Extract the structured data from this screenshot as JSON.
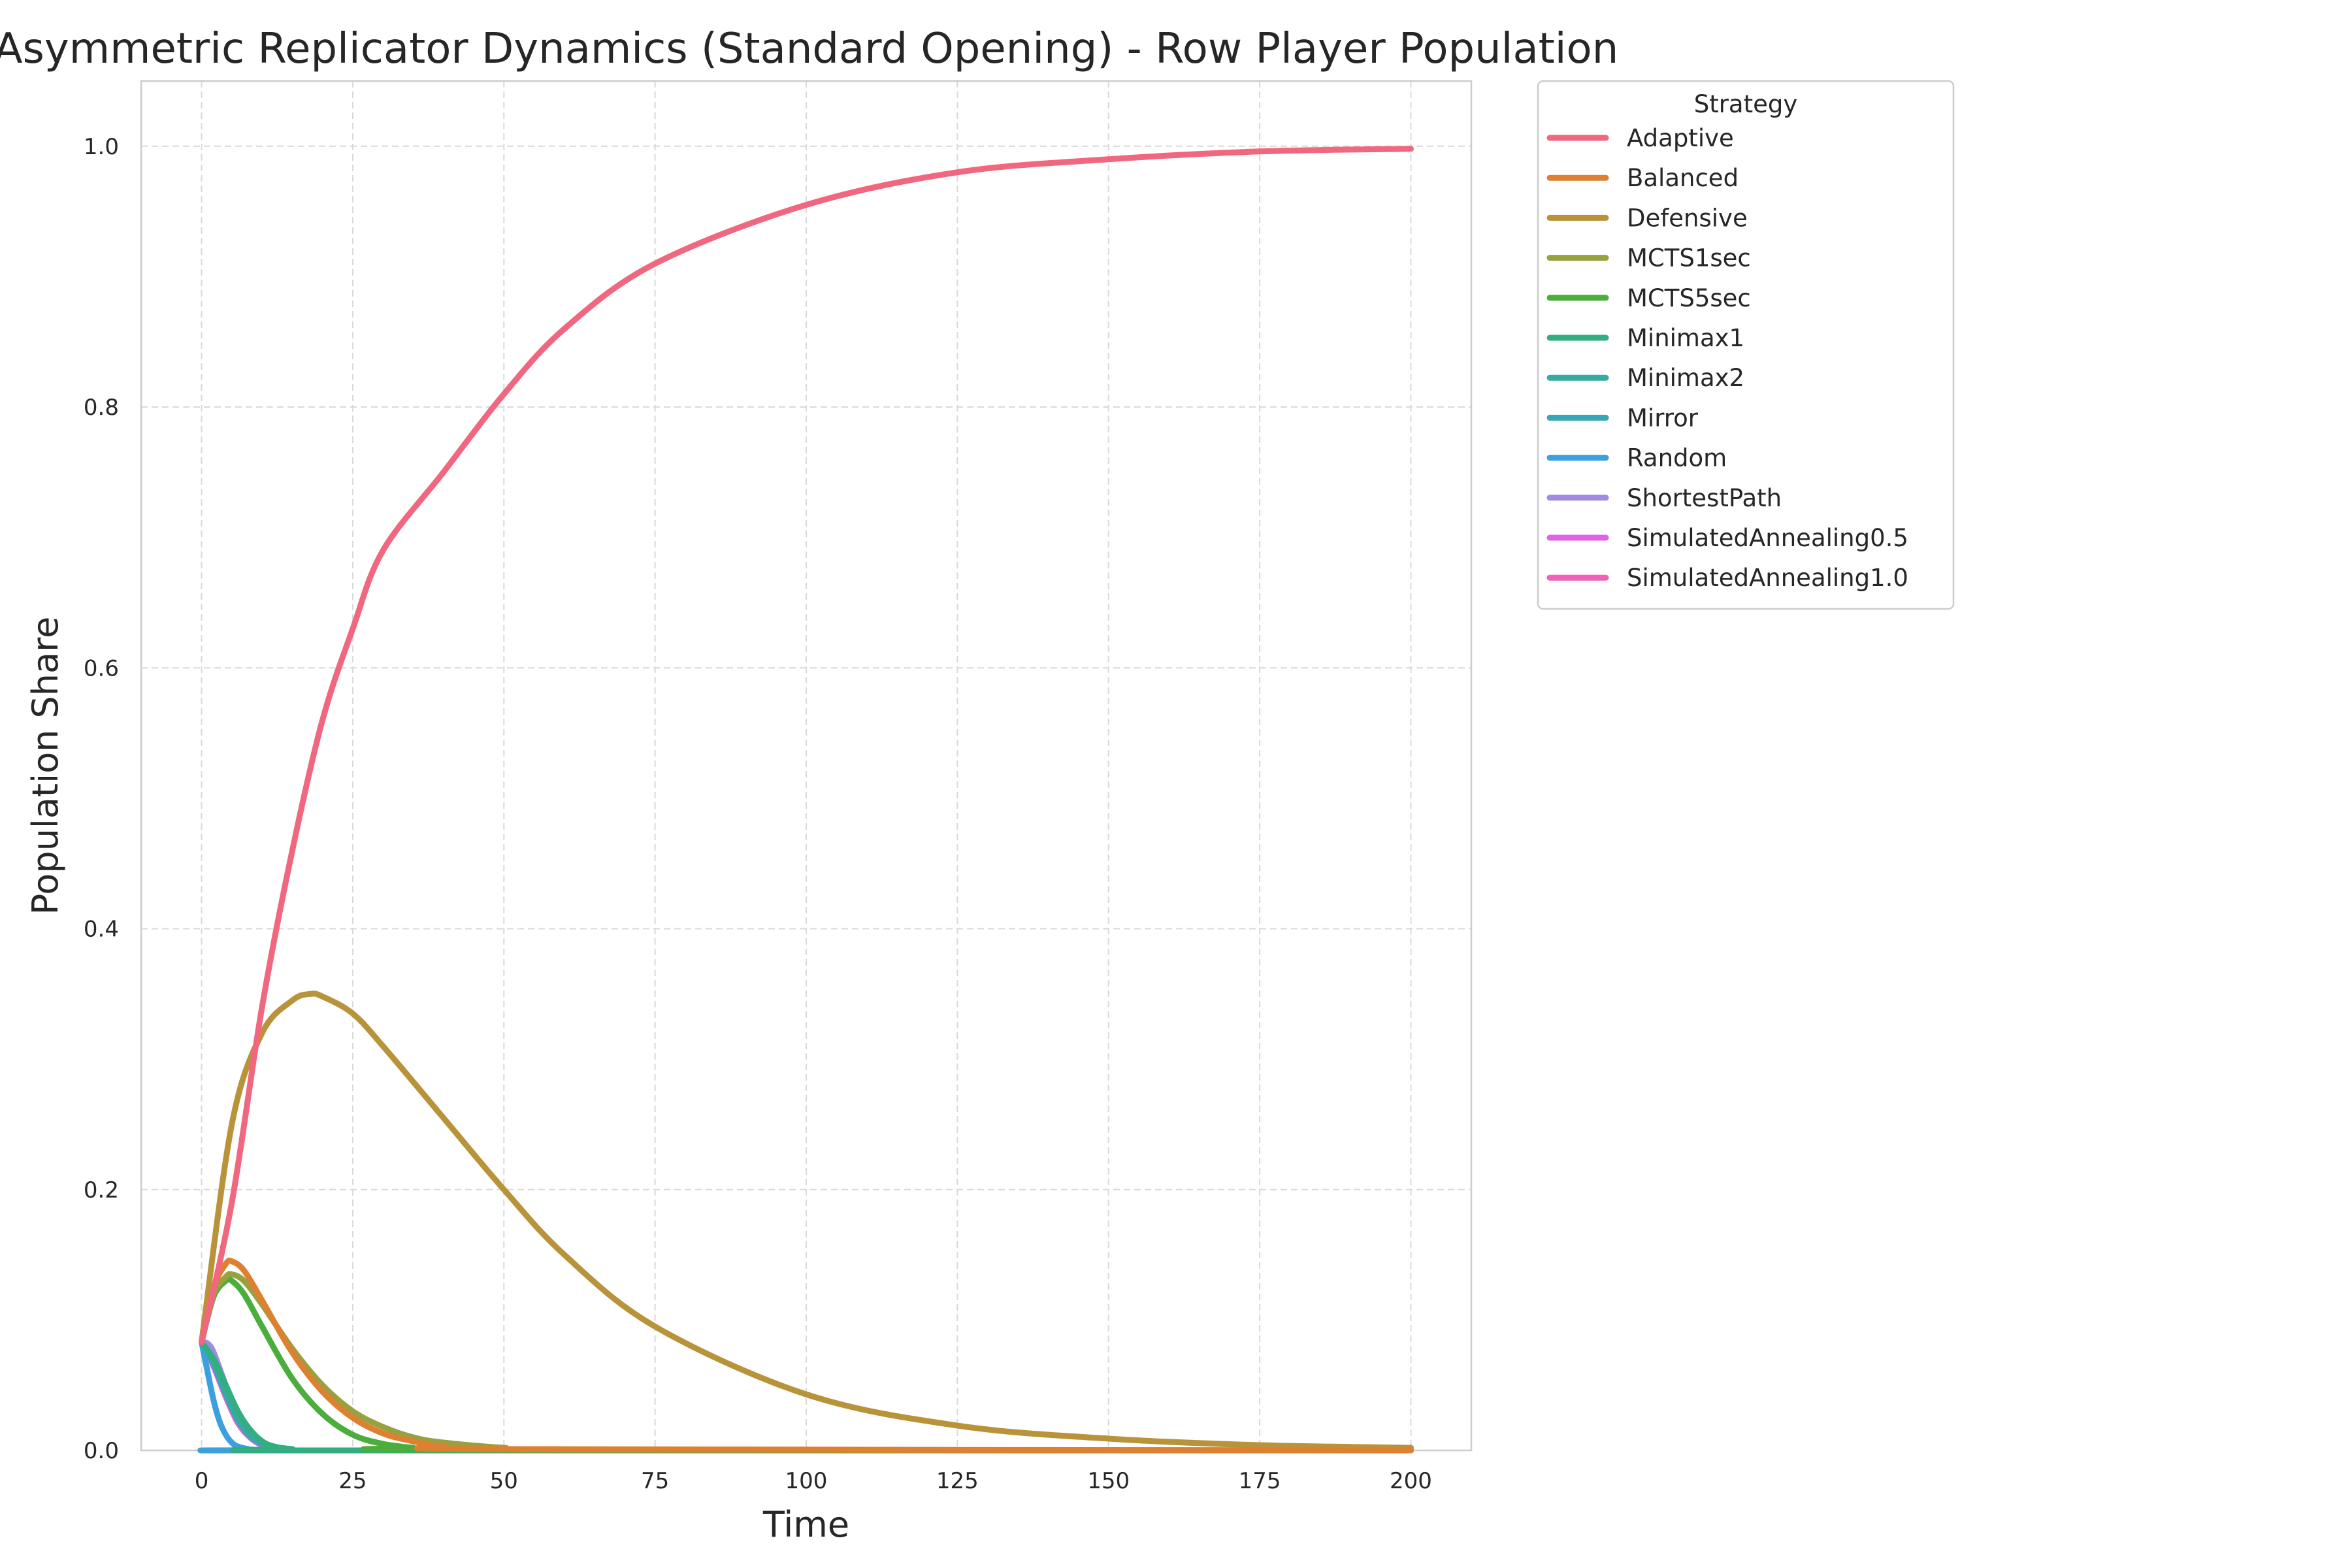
{
  "chart_data": {
    "type": "line",
    "title": "Asymmetric Replicator Dynamics (Standard Opening) - Row Player Population",
    "xlabel": "Time",
    "ylabel": "Population Share",
    "xlim": [
      -10,
      210
    ],
    "ylim": [
      0,
      1.05
    ],
    "xticks": [
      0,
      25,
      50,
      75,
      100,
      125,
      150,
      175,
      200
    ],
    "yticks": [
      0.0,
      0.2,
      0.4,
      0.6,
      0.8,
      1.0
    ],
    "xtick_labels": [
      "0",
      "25",
      "50",
      "75",
      "100",
      "125",
      "150",
      "175",
      "200"
    ],
    "ytick_labels": [
      "0.0",
      "0.2",
      "0.4",
      "0.6",
      "0.8",
      "1.0"
    ],
    "grid": true,
    "legend": {
      "title": "Strategy",
      "placement": "outside-upper-right"
    },
    "series": [
      {
        "name": "Adaptive",
        "color": "#f0677f",
        "x": [
          0,
          5,
          10,
          15,
          20,
          25,
          30,
          40,
          50,
          60,
          75,
          100,
          125,
          150,
          175,
          200
        ],
        "y": [
          0.083,
          0.19,
          0.34,
          0.46,
          0.56,
          0.63,
          0.69,
          0.75,
          0.81,
          0.86,
          0.91,
          0.955,
          0.98,
          0.99,
          0.996,
          0.998
        ]
      },
      {
        "name": "Balanced",
        "color": "#de8032",
        "x": [
          0,
          2,
          4,
          5,
          7,
          10,
          15,
          20,
          25,
          30,
          35,
          40,
          50,
          200
        ],
        "y": [
          0.083,
          0.125,
          0.143,
          0.145,
          0.138,
          0.115,
          0.075,
          0.045,
          0.025,
          0.013,
          0.007,
          0.003,
          0.001,
          0.0
        ]
      },
      {
        "name": "Defensive",
        "color": "#b9933a",
        "x": [
          0,
          5,
          10,
          15,
          18,
          20,
          25,
          30,
          40,
          50,
          60,
          75,
          100,
          125,
          150,
          175,
          200
        ],
        "y": [
          0.083,
          0.25,
          0.32,
          0.345,
          0.35,
          0.348,
          0.335,
          0.31,
          0.255,
          0.2,
          0.15,
          0.095,
          0.043,
          0.019,
          0.009,
          0.004,
          0.002
        ]
      },
      {
        "name": "MCTS1sec",
        "color": "#97a13d",
        "x": [
          0,
          2,
          4,
          5,
          7,
          10,
          15,
          20,
          25,
          30,
          35,
          40,
          50,
          60,
          200
        ],
        "y": [
          0.083,
          0.12,
          0.133,
          0.135,
          0.13,
          0.112,
          0.078,
          0.05,
          0.03,
          0.018,
          0.01,
          0.006,
          0.002,
          0.0005,
          0.0
        ]
      },
      {
        "name": "MCTS5sec",
        "color": "#4aad3c",
        "x": [
          0,
          2,
          4,
          5,
          7,
          10,
          15,
          20,
          25,
          30,
          35,
          40,
          200
        ],
        "y": [
          0.083,
          0.118,
          0.13,
          0.13,
          0.12,
          0.095,
          0.055,
          0.028,
          0.012,
          0.005,
          0.002,
          0.0005,
          0.0
        ]
      },
      {
        "name": "Minimax1",
        "color": "#33ae81",
        "x": [
          0,
          2,
          4,
          6,
          8,
          10,
          12,
          15,
          20,
          200
        ],
        "y": [
          0.083,
          0.07,
          0.05,
          0.03,
          0.016,
          0.007,
          0.003,
          0.001,
          0.0,
          0.0
        ]
      },
      {
        "name": "Minimax2",
        "color": "#36ab9f",
        "x": [
          0,
          2,
          4,
          6,
          8,
          10,
          12,
          15,
          20,
          200
        ],
        "y": [
          0.083,
          0.068,
          0.046,
          0.026,
          0.013,
          0.006,
          0.002,
          0.0005,
          0.0,
          0.0
        ]
      },
      {
        "name": "Mirror",
        "color": "#39a6b8",
        "x": [
          0,
          2,
          4,
          6,
          8,
          10,
          12,
          15,
          20,
          200
        ],
        "y": [
          0.083,
          0.066,
          0.043,
          0.023,
          0.011,
          0.005,
          0.002,
          0.0005,
          0.0,
          0.0
        ]
      },
      {
        "name": "Random",
        "color": "#3ca0de",
        "x": [
          0,
          1,
          2,
          3,
          4,
          5,
          6,
          8,
          10,
          15,
          200
        ],
        "y": [
          0.083,
          0.06,
          0.038,
          0.022,
          0.012,
          0.006,
          0.003,
          0.0008,
          0.0002,
          0.0,
          0.0
        ]
      },
      {
        "name": "ShortestPath",
        "color": "#a08ae2",
        "x": [
          0,
          1,
          2,
          4,
          6,
          8,
          10,
          12,
          15,
          20,
          200
        ],
        "y": [
          0.083,
          0.082,
          0.075,
          0.05,
          0.027,
          0.013,
          0.006,
          0.002,
          0.0005,
          0.0,
          0.0
        ]
      },
      {
        "name": "SimulatedAnnealing0.5",
        "color": "#e063e6",
        "x": [
          0,
          2,
          4,
          6,
          8,
          10,
          12,
          15,
          20,
          200
        ],
        "y": [
          0.083,
          0.065,
          0.042,
          0.022,
          0.01,
          0.004,
          0.0015,
          0.0003,
          0.0,
          0.0
        ]
      },
      {
        "name": "SimulatedAnnealing1.0",
        "color": "#f062b8",
        "x": [
          0,
          2,
          4,
          6,
          8,
          10,
          12,
          15,
          20,
          200
        ],
        "y": [
          0.083,
          0.064,
          0.041,
          0.021,
          0.01,
          0.004,
          0.0015,
          0.0003,
          0.0,
          0.0
        ]
      }
    ]
  }
}
